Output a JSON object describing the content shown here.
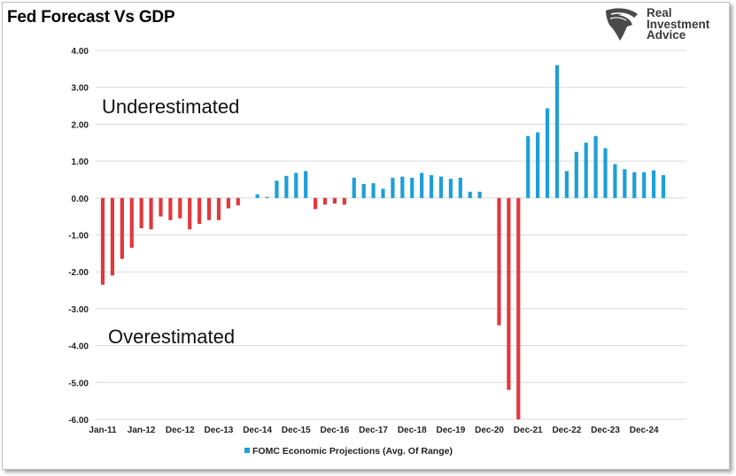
{
  "title": "Fed Forecast Vs GDP",
  "logo": {
    "icon": "eagle-head-icon",
    "line1": "Real",
    "line2": "Investment",
    "line3": "Advice",
    "color": "#3a3a3a"
  },
  "annotations": {
    "upper": "Underestimated",
    "lower": "Overestimated"
  },
  "chart_data": {
    "type": "bar",
    "title": "Fed Forecast Vs GDP",
    "xlabel": "",
    "ylabel": "",
    "ylim": [
      -6,
      4
    ],
    "yticks": [
      4,
      3,
      2,
      1,
      0,
      -1,
      -2,
      -3,
      -4,
      -5,
      -6
    ],
    "ytick_labels": [
      "4.00",
      "3.00",
      "2.00",
      "1.00",
      "0.00",
      "-1.00",
      "-2.00",
      "-3.00",
      "-4.00",
      "-5.00",
      "-6.00"
    ],
    "grid": true,
    "legend": {
      "position": "bottom",
      "label": "FOMC Economic Projections (Avg. Of Range)"
    },
    "colors": {
      "positive": "#1e9fd8",
      "negative": "#e0393e"
    },
    "xtick_labels": [
      {
        "label": "Jan-11",
        "index": 0
      },
      {
        "label": "Jan-12",
        "index": 4
      },
      {
        "label": "Dec-12",
        "index": 8
      },
      {
        "label": "Dec-13",
        "index": 12
      },
      {
        "label": "Dec-14",
        "index": 16
      },
      {
        "label": "Dec-15",
        "index": 20
      },
      {
        "label": "Dec-16",
        "index": 24
      },
      {
        "label": "Dec-17",
        "index": 28
      },
      {
        "label": "Dec-18",
        "index": 32
      },
      {
        "label": "Dec-19",
        "index": 36
      },
      {
        "label": "Dec-20",
        "index": 40
      },
      {
        "label": "Dec-21",
        "index": 44
      },
      {
        "label": "Dec-22",
        "index": 48
      },
      {
        "label": "Dec-23",
        "index": 52
      },
      {
        "label": "Dec-24",
        "index": 56
      }
    ],
    "values": [
      -2.35,
      -2.1,
      -1.65,
      -1.35,
      -0.82,
      -0.85,
      -0.5,
      -0.6,
      -0.55,
      -0.85,
      -0.7,
      -0.6,
      -0.6,
      -0.28,
      -0.2,
      0.0,
      0.1,
      0.03,
      0.47,
      0.6,
      0.68,
      0.73,
      -0.3,
      -0.18,
      -0.15,
      -0.18,
      0.55,
      0.38,
      0.4,
      0.25,
      0.55,
      0.58,
      0.55,
      0.68,
      0.62,
      0.58,
      0.52,
      0.55,
      0.17,
      0.17,
      0.0,
      -3.45,
      -5.2,
      -6.0,
      1.68,
      1.78,
      2.43,
      3.6,
      0.73,
      1.25,
      1.5,
      1.68,
      1.35,
      0.92,
      0.78,
      0.7,
      0.7,
      0.75,
      0.62
    ]
  }
}
